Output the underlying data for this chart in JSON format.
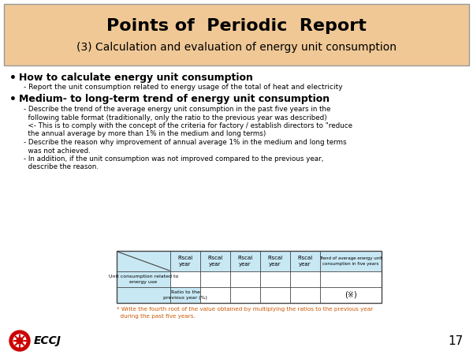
{
  "slide_bg": "#ffffff",
  "title_line1": "Points of  Periodic  Report",
  "title_line2": "(3) Calculation and evaluation of energy unit consumption",
  "title_bg": "#f0c896",
  "bullet1_header": "How to calculate energy unit consumption",
  "bullet1_sub": "- Report the unit consumption related to energy usage of the total of heat and electricity",
  "bullet2_header": "Medium- to long-term trend of energy unit consumption",
  "bullet2_subs": [
    "- Describe the trend of the average energy unit consumption in the past five years in the",
    "  following table format (traditionally, only the ratio to the previous year was described)",
    "  <- This is to comply with the concept of the criteria for factory / establish directors to \"reduce",
    "  the annual average by more than 1% in the medium and long terms)",
    "- Describe the reason why improvement of annual average 1% in the medium and long terms",
    "  was not achieved.",
    "- In addition, if the unit consumption was not improved compared to the previous year,",
    "  describe the reason."
  ],
  "table_header_bg": "#c8e8f4",
  "table_col_headers": [
    "Fiscal\nyear",
    "Fiscal\nyear",
    "Fiscal\nyear",
    "Fiscal\nyear",
    "Fiscal\nyear",
    "Trend of average energy unit\nconsumption in five years"
  ],
  "table_row1_label": "Unit consumption related to\nenergy use",
  "table_row2_label": "Ratio to the\nprevious year (%)",
  "table_special_cell": "(※)",
  "footnote_line1": "* Write the fourth root of the value obtained by multiplying the ratios to the previous year",
  "footnote_line2": "  during the past five years.",
  "page_num": "17",
  "eccj_logo_color": "#cc0000"
}
